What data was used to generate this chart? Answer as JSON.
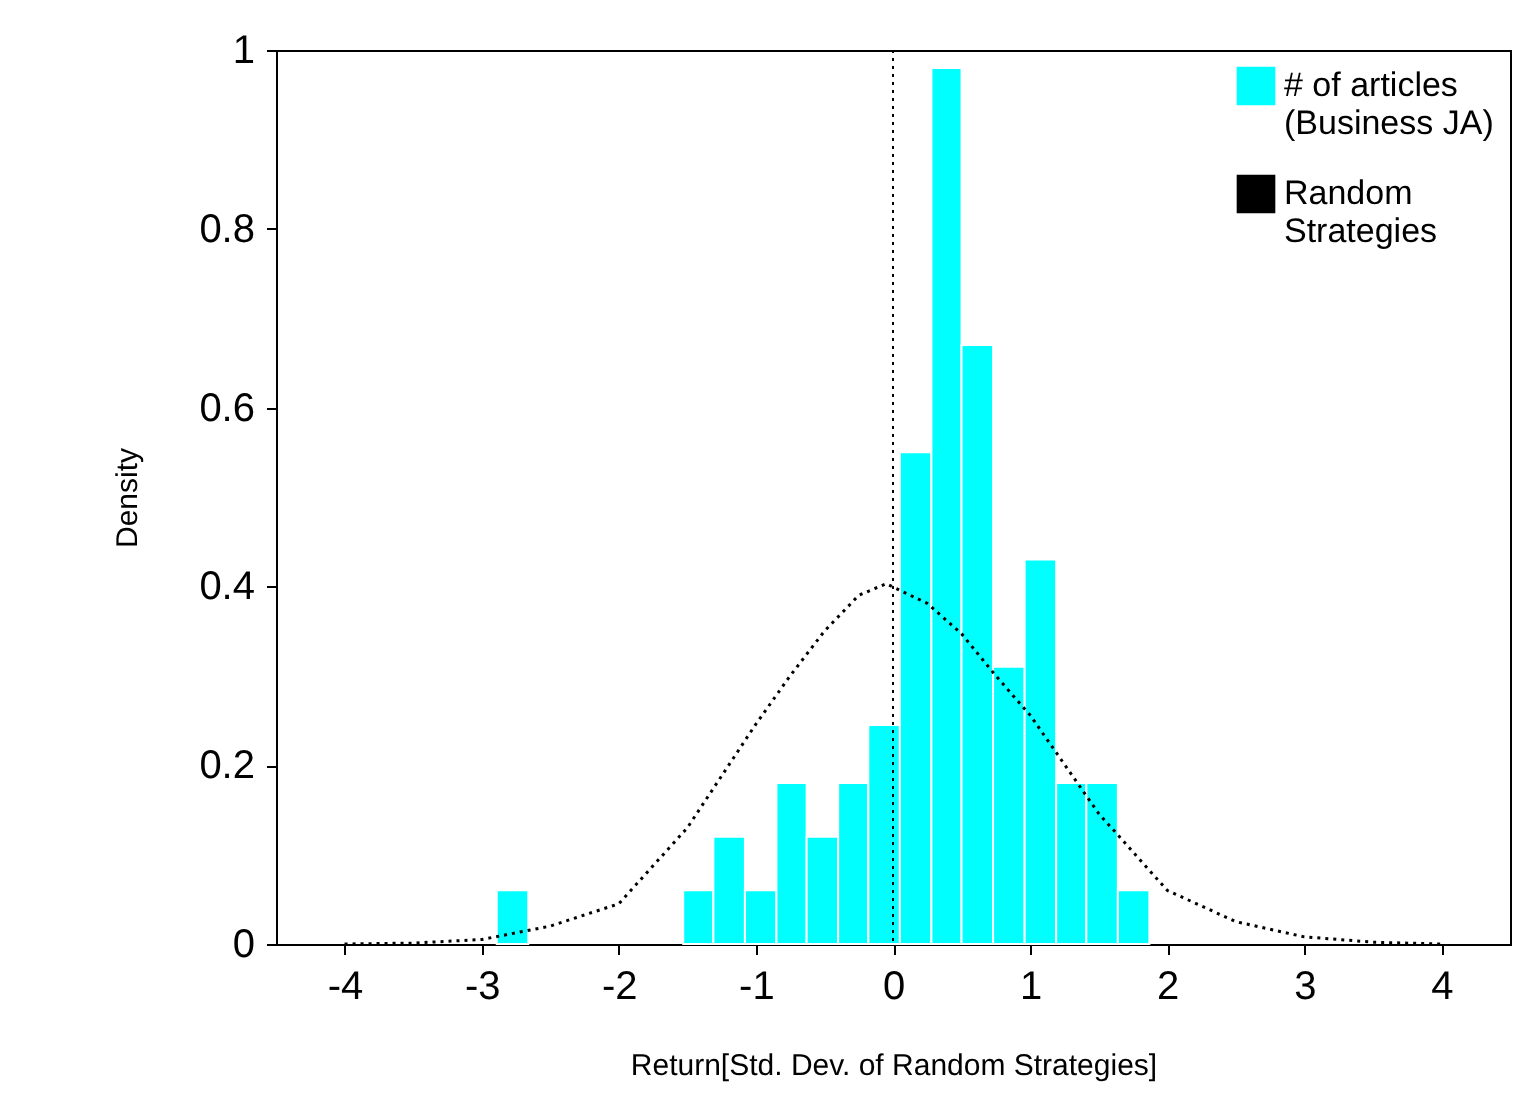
{
  "chart_data": {
    "type": "histogram",
    "xlabel": "Return[Std. Dev. of Random Strategies]",
    "ylabel": "Density",
    "xlim": [
      -4.5,
      4.5
    ],
    "xticks": [
      -4,
      -3,
      -2,
      -1,
      0,
      1,
      2,
      3,
      4
    ],
    "ylim": [
      0,
      1
    ],
    "yticks": [
      0,
      0.2,
      0.4,
      0.6,
      0.8,
      1
    ],
    "legend": "top right",
    "series": [
      {
        "name": "# of articles\n(Business JA)",
        "color": "#00ffff",
        "bins": [
          -2.89,
          -2.66,
          -1.53,
          -1.31,
          -1.08,
          -0.85,
          -0.63,
          -0.4,
          -0.18,
          0.05,
          0.28,
          0.5,
          0.73,
          0.96,
          1.19,
          1.41,
          1.64,
          1.87
        ],
        "values": [
          0.06,
          0,
          0.06,
          0.12,
          0.06,
          0.18,
          0.12,
          0.18,
          0.245,
          0.55,
          0.98,
          0.67,
          0.31,
          0.43,
          0.18,
          0.18,
          0.06
        ]
      },
      {
        "name": "Random\nStrategies",
        "type": "line",
        "color": "#000000",
        "line_style": "dotted",
        "x": [
          -4,
          -3.5,
          -3,
          -2.5,
          -2,
          -1.5,
          -1,
          -0.75,
          -0.5,
          -0.25,
          -0.05,
          0.25,
          0.5,
          0.75,
          1,
          1.5,
          2,
          2.5,
          3,
          3.5,
          4
        ],
        "values": [
          0,
          0.001,
          0.005,
          0.02,
          0.045,
          0.13,
          0.246,
          0.3,
          0.35,
          0.39,
          0.403,
          0.381,
          0.347,
          0.3,
          0.256,
          0.146,
          0.06,
          0.025,
          0.008,
          0.002,
          0
        ]
      }
    ],
    "ref_lines": [
      {
        "axis": "x",
        "value": 0,
        "color": "#000000",
        "line_style": "dotted"
      }
    ]
  }
}
